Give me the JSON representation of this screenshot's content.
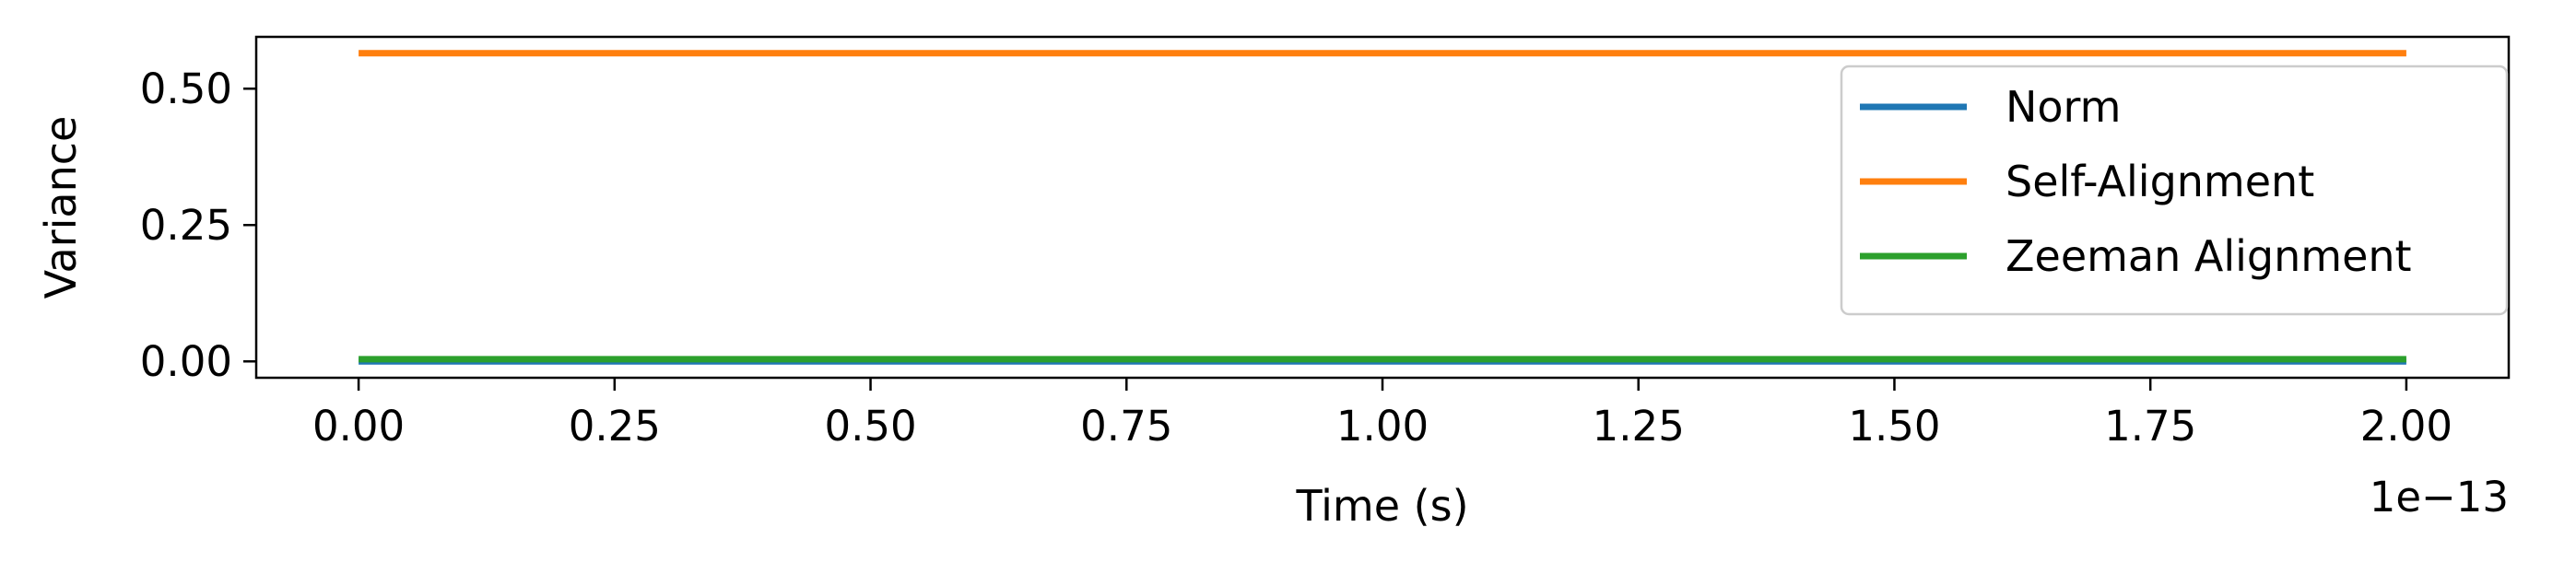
{
  "chart_data": {
    "type": "line",
    "title": "",
    "xlabel": "Time (s)",
    "ylabel": "Variance",
    "x_offset_label": "1e−13",
    "xlim": [
      -0.1,
      2.1
    ],
    "ylim": [
      -0.03,
      0.595
    ],
    "x_ticks": [
      0.0,
      0.25,
      0.5,
      0.75,
      1.0,
      1.25,
      1.5,
      1.75,
      2.0
    ],
    "x_tick_labels": [
      "0.00",
      "0.25",
      "0.50",
      "0.75",
      "1.00",
      "1.25",
      "1.50",
      "1.75",
      "2.00"
    ],
    "y_ticks": [
      0.0,
      0.25,
      0.5
    ],
    "y_tick_labels": [
      "0.00",
      "0.25",
      "0.50"
    ],
    "grid": false,
    "legend_position": "top-right",
    "series": [
      {
        "name": "Norm",
        "color": "#1f77b4",
        "x": [
          0.0,
          2.0
        ],
        "y": [
          0.0,
          0.0
        ]
      },
      {
        "name": "Self-Alignment",
        "color": "#ff7f0e",
        "x": [
          0.0,
          2.0
        ],
        "y": [
          0.565,
          0.565
        ]
      },
      {
        "name": "Zeeman Alignment",
        "color": "#2ca02c",
        "x": [
          0.0,
          2.0
        ],
        "y": [
          0.004,
          0.004
        ]
      }
    ]
  }
}
